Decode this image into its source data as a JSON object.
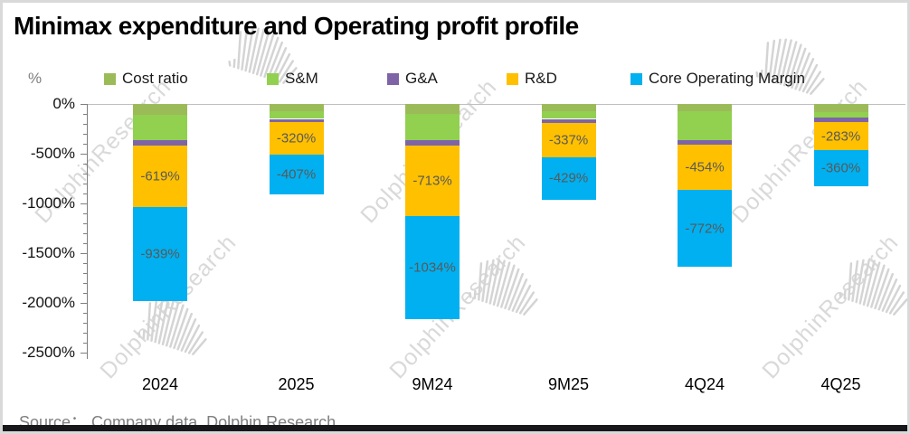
{
  "title": "Minimax expenditure and Operating profit profile",
  "source_note": "Source：  Company data, Dolphin Research",
  "watermark_text": "DolphinResearch",
  "colors": {
    "cost_ratio": "#9BBB59",
    "sm": "#92D050",
    "ga": "#7E64A6",
    "rd": "#FFC000",
    "core_operating_margin": "#00B0F0",
    "accent_bottom_bar": "#18181C",
    "axis": "#7F7F7F",
    "zero_line": "#BFBFBF",
    "data_label": "#595959",
    "watermark": "#D9D9D9"
  },
  "chart_data": {
    "type": "bar",
    "subtype": "stacked-vertical-negative",
    "title": "Minimax expenditure and Operating profit profile",
    "categories": [
      "2024",
      "2025",
      "9M24",
      "9M25",
      "4Q24",
      "4Q25"
    ],
    "series": [
      {
        "name": "Cost ratio",
        "color": "#9BBB59",
        "values": [
          -110,
          -70,
          -100,
          -70,
          -70,
          -80
        ],
        "data_labels": null
      },
      {
        "name": "S&M",
        "color": "#92D050",
        "values": [
          -258,
          -80,
          -265,
          -80,
          -290,
          -60
        ],
        "data_labels": null
      },
      {
        "name": "G&A",
        "color": "#7E64A6",
        "values": [
          -53,
          -35,
          -53,
          -45,
          -50,
          -45
        ],
        "data_labels": null
      },
      {
        "name": "R&D",
        "color": "#FFC000",
        "values": [
          -619,
          -320,
          -713,
          -337,
          -454,
          -283
        ],
        "data_labels": [
          "-619%",
          "-320%",
          "-713%",
          "-337%",
          "-454%",
          "-283%"
        ]
      },
      {
        "name": "Core Operating Margin",
        "color": "#00B0F0",
        "values": [
          -939,
          -407,
          -1034,
          -429,
          -772,
          -360
        ],
        "data_labels": [
          "-939%",
          "-407%",
          "-1034%",
          "-429%",
          "-772%",
          "-360%"
        ]
      }
    ],
    "y_axis": {
      "unit": "%",
      "tick_labels": [
        "0%",
        "-500%",
        "-1000%",
        "-1500%",
        "-2000%",
        "-2500%"
      ],
      "range": [
        0,
        -2500
      ],
      "major_tick_interval": 500,
      "minor_tick_interval": 100
    },
    "legend_position": "top",
    "gridlines": "zero-line-only"
  }
}
